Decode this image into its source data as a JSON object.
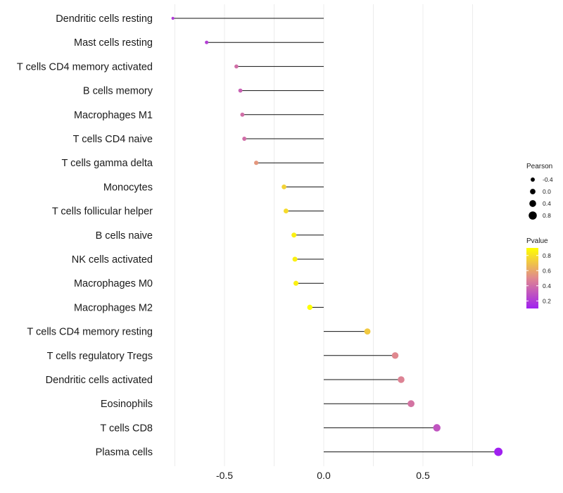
{
  "chart_data": {
    "type": "lollipop",
    "categories": [
      "Dendritic cells resting",
      "Mast cells resting",
      "T cells CD4 memory activated",
      "B cells memory",
      "Macrophages M1",
      "T cells CD4 naive",
      "T cells gamma delta",
      "Monocytes",
      "T cells follicular helper",
      "B cells naive",
      "NK cells activated",
      "Macrophages M0",
      "Macrophages M2",
      "T cells CD4 memory resting",
      "T cells regulatory  Tregs ",
      "Dendritic cells activated",
      "Eosinophils",
      "T cells CD8",
      "Plasma cells"
    ],
    "pearson": [
      -0.76,
      -0.59,
      -0.44,
      -0.42,
      -0.41,
      -0.4,
      -0.34,
      -0.2,
      -0.19,
      -0.15,
      -0.145,
      -0.14,
      -0.07,
      0.22,
      0.36,
      0.39,
      0.44,
      0.57,
      0.88
    ],
    "pvalue": [
      0.2,
      0.22,
      0.4,
      0.35,
      0.4,
      0.4,
      0.55,
      0.75,
      0.78,
      0.85,
      0.85,
      0.85,
      0.95,
      0.72,
      0.5,
      0.48,
      0.42,
      0.3,
      0.1
    ],
    "xlim": [
      -0.8,
      0.95
    ],
    "xticks": [
      -0.5,
      0.0,
      0.5
    ],
    "xtick_labels": [
      "-0.5",
      "0.0",
      "0.5"
    ],
    "grid": true,
    "legend_size": {
      "title": "Pearson",
      "values": [
        -0.4,
        0.0,
        0.4,
        0.8
      ],
      "labels": [
        "-0.4",
        "0.0",
        "0.4",
        "0.8"
      ]
    },
    "legend_color": {
      "title": "Pvalue",
      "breaks": [
        0.2,
        0.4,
        0.6,
        0.8
      ],
      "labels": [
        "0.2",
        "0.4",
        "0.6",
        "0.8"
      ],
      "range": [
        0.1,
        0.9
      ],
      "low_color": "#a020f0",
      "mid_color": "#e0888f",
      "high_color": "#ffff00"
    },
    "legend_position": "right"
  }
}
